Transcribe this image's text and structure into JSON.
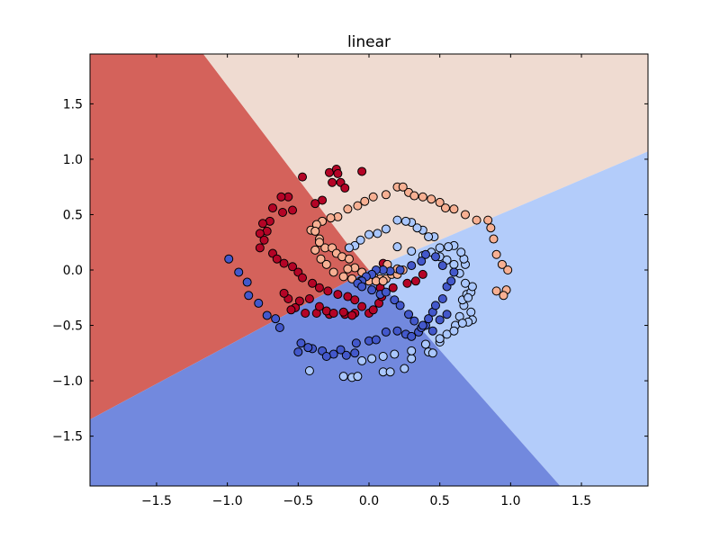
{
  "chart_data": {
    "type": "scatter",
    "title": "linear",
    "xlabel": "",
    "ylabel": "",
    "xlim": [
      -1.97,
      1.97
    ],
    "ylim": [
      -1.95,
      1.95
    ],
    "grid": false,
    "xticks": [
      -1.5,
      -1.0,
      -0.5,
      0.0,
      0.5,
      1.0,
      1.5
    ],
    "yticks": [
      -1.5,
      -1.0,
      -0.5,
      0.0,
      0.5,
      1.0,
      1.5
    ],
    "xtick_labels": [
      "−1.5",
      "−1.0",
      "−0.5",
      "0.0",
      "0.5",
      "1.0",
      "1.5"
    ],
    "ytick_labels": [
      "−1.5",
      "−1.0",
      "−0.5",
      "0.0",
      "0.5",
      "1.0",
      "1.5"
    ],
    "decision_regions": [
      {
        "class": 0,
        "color": "#d4625b",
        "polygon": [
          [
            -1.97,
            1.95
          ],
          [
            -1.17,
            1.95
          ],
          [
            -0.16,
            0.25
          ],
          [
            0.0,
            0.0
          ],
          [
            -1.97,
            -1.35
          ]
        ]
      },
      {
        "class": 1,
        "color": "#efdbd1",
        "polygon": [
          [
            -1.17,
            1.95
          ],
          [
            1.97,
            1.95
          ],
          [
            1.97,
            1.07
          ],
          [
            0.0,
            0.0
          ],
          [
            -0.16,
            0.25
          ]
        ]
      },
      {
        "class": 2,
        "color": "#b3ccfa",
        "polygon": [
          [
            1.97,
            1.07
          ],
          [
            1.97,
            -1.95
          ],
          [
            1.35,
            -1.95
          ],
          [
            0.0,
            0.0
          ]
        ]
      },
      {
        "class": 3,
        "color": "#7289de",
        "polygon": [
          [
            1.35,
            -1.95
          ],
          [
            -1.97,
            -1.95
          ],
          [
            -1.97,
            -1.35
          ],
          [
            0.0,
            0.0
          ]
        ]
      }
    ],
    "series": [
      {
        "class": 0,
        "color": "#b40426",
        "x": [
          -0.47,
          -0.28,
          -0.23,
          -0.22,
          -0.05,
          -0.2,
          -0.26,
          -0.17,
          -0.33,
          -0.38,
          -0.57,
          -0.62,
          -0.54,
          -0.68,
          -0.61,
          -0.7,
          -0.75,
          -0.72,
          -0.77,
          -0.74,
          -0.77,
          -0.68,
          -0.65,
          -0.6,
          -0.54,
          -0.5,
          -0.47,
          -0.4,
          -0.35,
          -0.29,
          -0.22,
          -0.15,
          -0.1,
          -0.05,
          0.0,
          0.03,
          0.07,
          0.09,
          0.17,
          0.27,
          0.33,
          0.38,
          0.08,
          0.1,
          -0.1,
          -0.17,
          -0.28,
          -0.37,
          -0.45,
          -0.52,
          -0.57,
          -0.6,
          -0.55,
          -0.49,
          -0.42,
          -0.35,
          -0.3,
          -0.25,
          -0.18,
          -0.12
        ],
        "y": [
          0.84,
          0.88,
          0.91,
          0.87,
          0.89,
          0.79,
          0.79,
          0.74,
          0.63,
          0.6,
          0.66,
          0.66,
          0.54,
          0.56,
          0.52,
          0.44,
          0.42,
          0.35,
          0.33,
          0.27,
          0.2,
          0.15,
          0.1,
          0.06,
          0.03,
          -0.02,
          -0.07,
          -0.12,
          -0.16,
          -0.19,
          -0.22,
          -0.24,
          -0.27,
          -0.33,
          -0.39,
          -0.36,
          -0.3,
          -0.24,
          -0.16,
          -0.12,
          -0.1,
          -0.04,
          -0.16,
          0.06,
          -0.39,
          -0.4,
          -0.4,
          -0.39,
          -0.39,
          -0.34,
          -0.26,
          -0.21,
          -0.36,
          -0.28,
          -0.26,
          -0.33,
          -0.37,
          -0.39,
          -0.38,
          -0.41
        ]
      },
      {
        "class": 1,
        "color": "#f7b093",
        "x": [
          0.2,
          0.28,
          0.32,
          0.38,
          0.44,
          0.5,
          0.54,
          0.6,
          0.68,
          0.76,
          0.84,
          0.86,
          0.88,
          0.9,
          0.94,
          0.98,
          0.97,
          0.95,
          0.9,
          0.24,
          0.12,
          0.03,
          -0.03,
          -0.08,
          -0.15,
          -0.22,
          -0.27,
          -0.33,
          -0.37,
          -0.41,
          -0.38,
          -0.35,
          -0.31,
          -0.26,
          -0.23,
          -0.19,
          -0.14,
          -0.1,
          -0.05,
          -0.01,
          0.04,
          0.08,
          0.12,
          0.16,
          0.2,
          0.2,
          0.24,
          0.13,
          -0.15,
          -0.35,
          -0.38,
          -0.34,
          -0.3,
          -0.25,
          -0.18,
          -0.12,
          -0.06,
          0.0,
          0.05,
          0.1
        ],
        "y": [
          0.75,
          0.7,
          0.67,
          0.66,
          0.64,
          0.61,
          0.56,
          0.55,
          0.5,
          0.45,
          0.45,
          0.38,
          0.28,
          0.14,
          0.05,
          0.0,
          -0.18,
          -0.23,
          -0.19,
          0.75,
          0.68,
          0.66,
          0.62,
          0.58,
          0.55,
          0.48,
          0.47,
          0.44,
          0.41,
          0.36,
          0.35,
          0.28,
          0.2,
          0.2,
          0.15,
          0.12,
          0.1,
          0.02,
          -0.02,
          -0.08,
          -0.07,
          -0.08,
          -0.08,
          -0.04,
          -0.04,
          0.01,
          0.0,
          0.05,
          0.01,
          0.25,
          0.18,
          0.1,
          0.05,
          -0.02,
          -0.06,
          -0.08,
          -0.1,
          -0.1,
          -0.1,
          -0.1
        ]
      },
      {
        "class": 2,
        "color": "#aac7fd",
        "x": [
          -0.42,
          -0.18,
          -0.12,
          -0.08,
          0.1,
          0.15,
          0.25,
          0.3,
          0.42,
          0.45,
          0.5,
          0.55,
          0.61,
          0.64,
          0.67,
          0.66,
          0.69,
          0.72,
          0.73,
          0.68,
          0.67,
          0.65,
          0.6,
          0.56,
          0.5,
          0.46,
          0.42,
          0.38,
          0.34,
          0.3,
          0.26,
          0.2,
          0.12,
          0.06,
          0.0,
          -0.06,
          -0.1,
          -0.14,
          0.2,
          0.3,
          0.38,
          0.44,
          0.5,
          0.55,
          0.6,
          0.64,
          0.68,
          0.7,
          0.72,
          0.73,
          0.7,
          0.66,
          0.6,
          0.5,
          0.4,
          0.3,
          0.18,
          0.1,
          0.02,
          -0.05
        ],
        "y": [
          -0.91,
          -0.96,
          -0.97,
          -0.96,
          -0.92,
          -0.92,
          -0.89,
          -0.8,
          -0.74,
          -0.75,
          -0.65,
          -0.58,
          -0.5,
          -0.42,
          -0.32,
          -0.27,
          -0.22,
          -0.2,
          -0.15,
          0.05,
          0.1,
          0.16,
          0.22,
          0.21,
          0.2,
          0.3,
          0.3,
          0.36,
          0.38,
          0.43,
          0.44,
          0.45,
          0.37,
          0.33,
          0.32,
          0.27,
          0.22,
          0.2,
          0.21,
          0.17,
          0.13,
          0.16,
          0.12,
          0.09,
          0.05,
          -0.03,
          -0.12,
          -0.25,
          -0.38,
          -0.45,
          -0.47,
          -0.48,
          -0.55,
          -0.62,
          -0.67,
          -0.73,
          -0.76,
          -0.78,
          -0.8,
          -0.82
        ]
      },
      {
        "class": 3,
        "color": "#4358cb",
        "x": [
          -0.99,
          -0.92,
          -0.86,
          -0.85,
          -0.78,
          -0.72,
          -0.66,
          -0.63,
          -0.48,
          -0.4,
          -0.33,
          -0.25,
          -0.16,
          -0.09,
          0.0,
          0.05,
          0.12,
          0.2,
          0.26,
          0.3,
          0.35,
          0.37,
          0.4,
          0.42,
          0.45,
          0.47,
          0.52,
          0.55,
          0.58,
          0.6,
          0.52,
          0.47,
          0.4,
          0.37,
          0.3,
          0.22,
          0.15,
          0.1,
          0.05,
          0.02,
          -0.02,
          -0.05,
          -0.08,
          -0.05,
          0.02,
          0.08,
          0.12,
          0.18,
          0.22,
          0.28,
          0.32,
          0.38,
          0.45,
          0.5,
          0.55,
          -0.5,
          -0.43,
          -0.3,
          -0.2,
          -0.1
        ],
        "y": [
          0.1,
          -0.02,
          -0.11,
          -0.23,
          -0.3,
          -0.41,
          -0.44,
          -0.52,
          -0.66,
          -0.71,
          -0.73,
          -0.76,
          -0.77,
          -0.66,
          -0.64,
          -0.63,
          -0.56,
          -0.55,
          -0.58,
          -0.6,
          -0.56,
          -0.52,
          -0.5,
          -0.44,
          -0.38,
          -0.32,
          -0.26,
          -0.15,
          -0.1,
          -0.02,
          0.04,
          0.12,
          0.14,
          0.08,
          0.04,
          0.0,
          -0.01,
          0.0,
          0.0,
          -0.04,
          -0.06,
          -0.1,
          -0.12,
          -0.15,
          -0.18,
          -0.22,
          -0.2,
          -0.27,
          -0.32,
          -0.4,
          -0.46,
          -0.5,
          -0.55,
          -0.45,
          -0.4,
          -0.74,
          -0.7,
          -0.78,
          -0.72,
          -0.75
        ]
      }
    ]
  }
}
